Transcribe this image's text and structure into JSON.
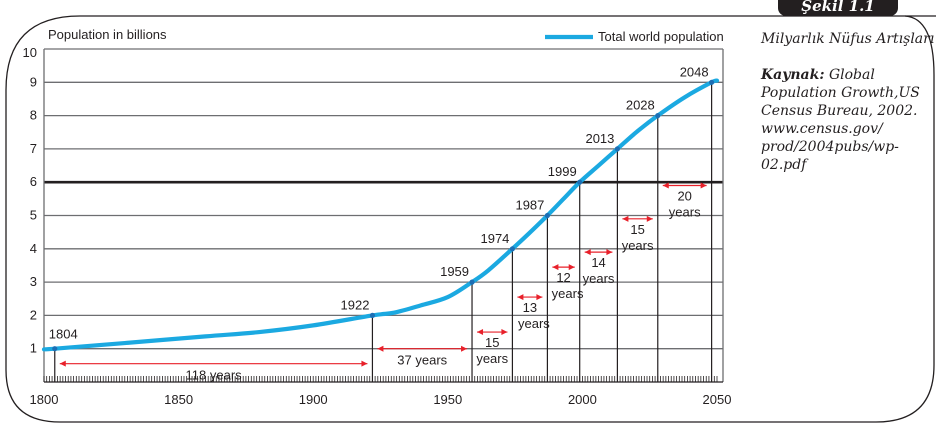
{
  "figure": {
    "badge": "Şekil 1.1",
    "caption": "Milyarlık Nüfus Artışları",
    "source_label": "Kaynak:",
    "source_lines": [
      "Global",
      "Population Growth,US",
      "Census Bureau, 2002.",
      "www.census.gov/",
      "prod/2004pubs/wp-",
      "02.pdf"
    ]
  },
  "colors": {
    "series": "#1ba9e1",
    "arrows": "#e8202a",
    "grid": "#6d6e71",
    "text": "#231f20"
  },
  "chart_data": {
    "type": "line",
    "title": "",
    "ylabel": "Population in billions",
    "xlabel": "",
    "xlim": [
      1800,
      2050
    ],
    "ylim": [
      0,
      10
    ],
    "x_ticks": [
      "1800",
      "1850",
      "1900",
      "1950",
      "2000",
      "2050"
    ],
    "y_ticks": [
      "1",
      "2",
      "3",
      "4",
      "5",
      "6",
      "7",
      "8",
      "9",
      "10"
    ],
    "legend": {
      "position": "top-right",
      "entries": [
        "Total world population"
      ]
    },
    "grid": true,
    "highlight_line_y": 6,
    "series": [
      {
        "name": "Total world population",
        "x": [
          1800,
          1804,
          1830,
          1860,
          1880,
          1900,
          1922,
          1930,
          1940,
          1950,
          1959,
          1965,
          1974,
          1980,
          1987,
          1993,
          1999,
          2006,
          2013,
          2020,
          2028,
          2038,
          2048,
          2050
        ],
        "y": [
          0.98,
          1,
          1.17,
          1.37,
          1.5,
          1.7,
          2,
          2.08,
          2.3,
          2.55,
          3,
          3.35,
          4,
          4.45,
          5,
          5.5,
          6,
          6.5,
          7,
          7.5,
          8,
          8.55,
          9,
          9.05
        ]
      }
    ],
    "milestones": [
      {
        "year": 1804,
        "label": "1804",
        "billions": 1
      },
      {
        "year": 1922,
        "label": "1922",
        "billions": 2
      },
      {
        "year": 1959,
        "label": "1959",
        "billions": 3
      },
      {
        "year": 1974,
        "label": "1974",
        "billions": 4
      },
      {
        "year": 1987,
        "label": "1987",
        "billions": 5
      },
      {
        "year": 1999,
        "label": "1999",
        "billions": 6
      },
      {
        "year": 2013,
        "label": "2013",
        "billions": 7
      },
      {
        "year": 2028,
        "label": "2028",
        "billions": 8
      },
      {
        "year": 2048,
        "label": "2048",
        "billions": 9
      }
    ],
    "intervals": [
      {
        "from": 1804,
        "to": 1922,
        "number": "118",
        "unit": "years",
        "inline": true,
        "level": 0.55
      },
      {
        "from": 1922,
        "to": 1959,
        "number": "37",
        "unit": "years",
        "inline": true,
        "level": 1.0
      },
      {
        "from": 1959,
        "to": 1974,
        "number": "15",
        "unit": "years",
        "inline": false,
        "level": 1.5
      },
      {
        "from": 1974,
        "to": 1987,
        "number": "13",
        "unit": "years",
        "inline": false,
        "level": 2.55
      },
      {
        "from": 1987,
        "to": 1999,
        "number": "12",
        "unit": "years",
        "inline": false,
        "level": 3.45
      },
      {
        "from": 1999,
        "to": 2013,
        "number": "14",
        "unit": "years",
        "inline": false,
        "level": 3.9
      },
      {
        "from": 2013,
        "to": 2028,
        "number": "15",
        "unit": "years",
        "inline": false,
        "level": 4.9
      },
      {
        "from": 2028,
        "to": 2048,
        "number": "20",
        "unit": "years",
        "inline": false,
        "level": 5.9
      }
    ]
  }
}
